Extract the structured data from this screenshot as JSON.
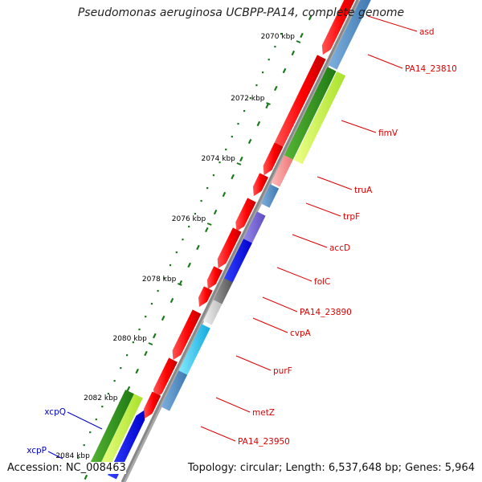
{
  "title": "Pseudomonas aeruginosa UCBPP-PA14, complete genome",
  "footer": {
    "accession": "Accession: NC_008463",
    "topology": "Topology: circular; Length: 6,537,648 bp; Genes: 5,964"
  },
  "kbp_ticks": [
    "2070 kbp",
    "2072 kbp",
    "2074 kbp",
    "2076 kbp",
    "2078 kbp",
    "2080 kbp",
    "2082 kbp",
    "2084 kbp"
  ],
  "gene_labels": [
    "asd",
    "PA14_23810",
    "fimV",
    "truA",
    "trpF",
    "accD",
    "folC",
    "PA14_23890",
    "cvpA",
    "purF",
    "metZ",
    "PA14_23950",
    "xcpQ",
    "xcpP"
  ],
  "colors": {
    "label_red": "#dd0000",
    "label_blue": "#0000cc",
    "tick_green": "#1a7a1a",
    "ring_gray": "#888888",
    "forward_strand": "#ff0000"
  }
}
